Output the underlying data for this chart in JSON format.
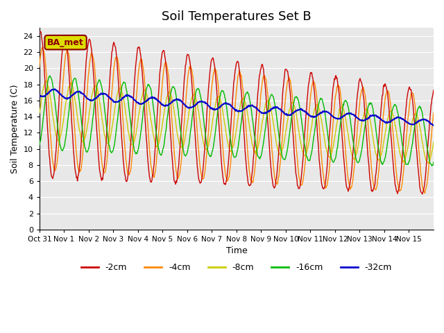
{
  "title": "Soil Temperatures Set B",
  "xlabel": "Time",
  "ylabel": "Soil Temperature (C)",
  "ylim": [
    0,
    25
  ],
  "yticks": [
    0,
    2,
    4,
    6,
    8,
    10,
    12,
    14,
    16,
    18,
    20,
    22,
    24
  ],
  "colors": {
    "-2cm": "#cc0000",
    "-4cm": "#ff8800",
    "-8cm": "#cccc00",
    "-16cm": "#00bb00",
    "-32cm": "#0000cc"
  },
  "legend_label": "BA_met",
  "xtick_labels": [
    "Oct 31",
    "Nov 1",
    "Nov 2",
    "Nov 3",
    "Nov 4",
    "Nov 5",
    "Nov 6",
    "Nov 7",
    "Nov 8",
    "Nov 9",
    "Nov 10",
    "Nov 11",
    "Nov 12",
    "Nov 13",
    "Nov 14",
    "Nov 15"
  ],
  "background_color": "#e8e8e8",
  "title_fontsize": 13
}
